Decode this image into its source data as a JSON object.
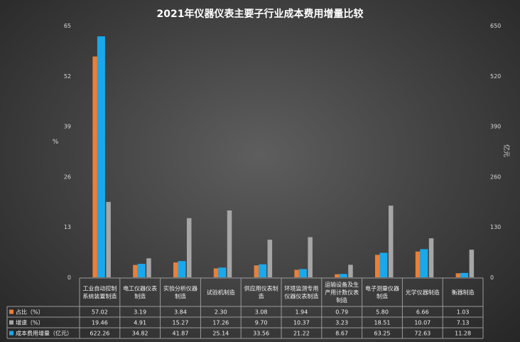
{
  "chart_data": {
    "type": "bar",
    "title": "2021年仪器仪表主要子行业成本费用增量比较",
    "ylabel_left": "%",
    "ylabel_right": "亿元",
    "ylim_left": [
      0,
      65
    ],
    "ylim_right": [
      0,
      650
    ],
    "yticks_left": [
      "0",
      "13",
      "26",
      "39",
      "52",
      "65"
    ],
    "yticks_right": [
      "0",
      "130",
      "260",
      "390",
      "520",
      "650"
    ],
    "categories": [
      [
        "工业自动控制",
        "系统装置制造"
      ],
      [
        "电工仪器仪表",
        "制造"
      ],
      [
        "实验分析仪器",
        "制造"
      ],
      [
        "试验机制造"
      ],
      [
        "供应用仪表制",
        "造"
      ],
      [
        "环境监测专用",
        "仪器仪表制造"
      ],
      [
        "运输设备及生",
        "产用计数仪表",
        "制造"
      ],
      [
        "电子测量仪器",
        "制造"
      ],
      [
        "光学仪器制造"
      ],
      [
        "衡器制造"
      ]
    ],
    "series": [
      {
        "name": "占比（%）",
        "axis": "left",
        "color": "#e8803a",
        "values": [
          57.02,
          3.19,
          3.84,
          2.3,
          3.08,
          1.94,
          0.79,
          5.8,
          6.66,
          1.03
        ],
        "labels": [
          "57.02",
          "3.19",
          "3.84",
          "2.30",
          "3.08",
          "1.94",
          "0.79",
          "5.80",
          "6.66",
          "1.03"
        ]
      },
      {
        "name": "成本费用增量（亿元）",
        "axis": "right",
        "color": "#1aa8ea",
        "values": [
          622.26,
          34.82,
          41.87,
          25.14,
          33.56,
          21.22,
          8.67,
          63.25,
          72.63,
          11.28
        ],
        "labels": [
          "622.26",
          "34.82",
          "41.87",
          "25.14",
          "33.56",
          "21.22",
          "8.67",
          "63.25",
          "72.63",
          "11.28"
        ]
      },
      {
        "name": "增速（%）",
        "axis": "left",
        "color": "#a6a6a6",
        "values": [
          19.46,
          4.91,
          15.27,
          17.26,
          9.7,
          10.37,
          3.23,
          18.51,
          10.07,
          7.13
        ],
        "labels": [
          "19.46",
          "4.91",
          "15.27",
          "17.26",
          "9.70",
          "10.37",
          "3.23",
          "18.51",
          "10.07",
          "7.13"
        ]
      }
    ],
    "table_row_order": [
      0,
      2,
      1
    ],
    "grid": false,
    "legend": "table-left"
  }
}
